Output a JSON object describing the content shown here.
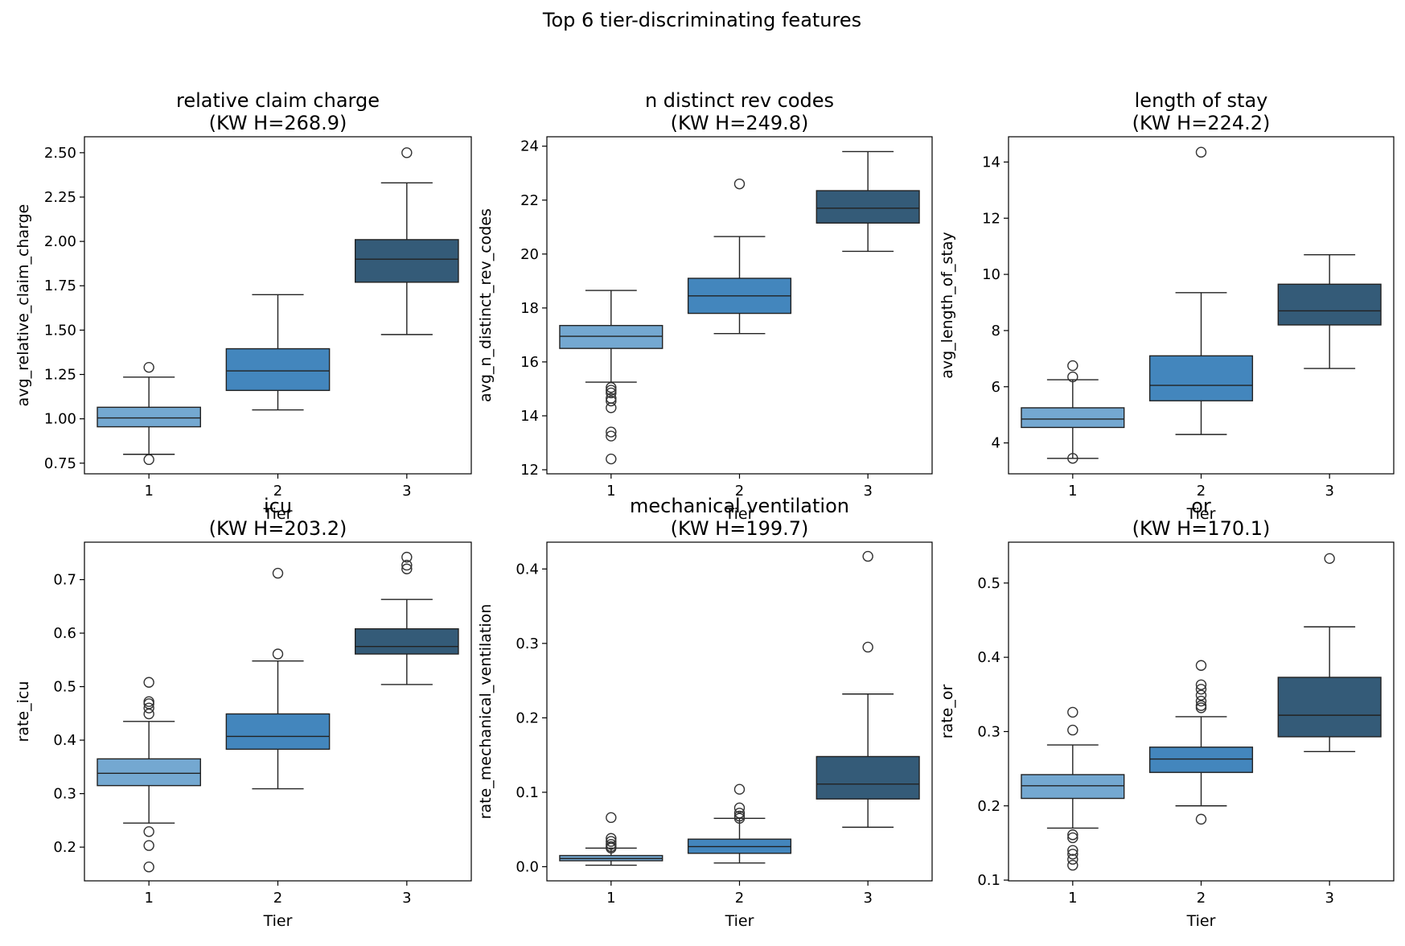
{
  "figure": {
    "title": "Top 6 tier-discriminating features"
  },
  "palette": {
    "tier1": "#74a8d1",
    "tier2": "#4386bd",
    "tier3": "#345b78",
    "edge": "#222222"
  },
  "chart_data": [
    {
      "type": "box",
      "title_line1": "relative claim charge",
      "title_line2": "(KW H=268.9)",
      "xlabel": "Tier",
      "ylabel": "avg_relative_claim_charge",
      "categories": [
        "1",
        "2",
        "3"
      ],
      "ylim": [
        0.69,
        2.59
      ],
      "yticks": [
        0.75,
        1.0,
        1.25,
        1.5,
        1.75,
        2.0,
        2.25,
        2.5
      ],
      "ytick_labels": [
        "0.75",
        "1.00",
        "1.25",
        "1.50",
        "1.75",
        "2.00",
        "2.25",
        "2.50"
      ],
      "boxes": [
        {
          "tier": "1",
          "whislo": 0.8,
          "q1": 0.955,
          "med": 1.005,
          "q3": 1.065,
          "whishi": 1.235,
          "fliers": [
            1.29,
            0.77
          ]
        },
        {
          "tier": "2",
          "whislo": 1.05,
          "q1": 1.16,
          "med": 1.27,
          "q3": 1.395,
          "whishi": 1.7,
          "fliers": []
        },
        {
          "tier": "3",
          "whislo": 1.475,
          "q1": 1.77,
          "med": 1.9,
          "q3": 2.01,
          "whishi": 2.33,
          "fliers": [
            2.5
          ]
        }
      ]
    },
    {
      "type": "box",
      "title_line1": "n distinct rev codes",
      "title_line2": "(KW H=249.8)",
      "xlabel": "Tier",
      "ylabel": "avg_n_distinct_rev_codes",
      "categories": [
        "1",
        "2",
        "3"
      ],
      "ylim": [
        11.85,
        24.35
      ],
      "yticks": [
        12,
        14,
        16,
        18,
        20,
        22,
        24
      ],
      "ytick_labels": [
        "12",
        "14",
        "16",
        "18",
        "20",
        "22",
        "24"
      ],
      "boxes": [
        {
          "tier": "1",
          "whislo": 15.25,
          "q1": 16.5,
          "med": 16.95,
          "q3": 17.35,
          "whishi": 18.65,
          "fliers": [
            15.05,
            14.95,
            14.85,
            14.65,
            14.55,
            14.3,
            13.4,
            13.25,
            12.4
          ]
        },
        {
          "tier": "2",
          "whislo": 17.05,
          "q1": 17.8,
          "med": 18.45,
          "q3": 19.1,
          "whishi": 20.65,
          "fliers": [
            22.6
          ]
        },
        {
          "tier": "3",
          "whislo": 20.1,
          "q1": 21.15,
          "med": 21.7,
          "q3": 22.35,
          "whishi": 23.8,
          "fliers": []
        }
      ]
    },
    {
      "type": "box",
      "title_line1": "length of stay",
      "title_line2": "(KW H=224.2)",
      "xlabel": "Tier",
      "ylabel": "avg_length_of_stay",
      "categories": [
        "1",
        "2",
        "3"
      ],
      "ylim": [
        2.9,
        14.9
      ],
      "yticks": [
        4,
        6,
        8,
        10,
        12,
        14
      ],
      "ytick_labels": [
        "4",
        "6",
        "8",
        "10",
        "12",
        "14"
      ],
      "boxes": [
        {
          "tier": "1",
          "whislo": 3.45,
          "q1": 4.55,
          "med": 4.85,
          "q3": 5.25,
          "whishi": 6.25,
          "fliers": [
            6.75,
            6.35,
            3.45
          ]
        },
        {
          "tier": "2",
          "whislo": 4.3,
          "q1": 5.5,
          "med": 6.05,
          "q3": 7.1,
          "whishi": 9.35,
          "fliers": [
            14.35
          ]
        },
        {
          "tier": "3",
          "whislo": 6.65,
          "q1": 8.2,
          "med": 8.7,
          "q3": 9.65,
          "whishi": 10.7,
          "fliers": []
        }
      ]
    },
    {
      "type": "box",
      "title_line1": "icu",
      "title_line2": "(KW H=203.2)",
      "xlabel": "Tier",
      "ylabel": "rate_icu",
      "categories": [
        "1",
        "2",
        "3"
      ],
      "ylim": [
        0.137,
        0.77
      ],
      "yticks": [
        0.2,
        0.3,
        0.4,
        0.5,
        0.6,
        0.7
      ],
      "ytick_labels": [
        "0.2",
        "0.3",
        "0.4",
        "0.5",
        "0.6",
        "0.7"
      ],
      "boxes": [
        {
          "tier": "1",
          "whislo": 0.245,
          "q1": 0.315,
          "med": 0.338,
          "q3": 0.365,
          "whishi": 0.435,
          "fliers": [
            0.508,
            0.472,
            0.468,
            0.46,
            0.449,
            0.229,
            0.203,
            0.163
          ]
        },
        {
          "tier": "2",
          "whislo": 0.309,
          "q1": 0.383,
          "med": 0.407,
          "q3": 0.449,
          "whishi": 0.548,
          "fliers": [
            0.712,
            0.561
          ]
        },
        {
          "tier": "3",
          "whislo": 0.504,
          "q1": 0.561,
          "med": 0.575,
          "q3": 0.608,
          "whishi": 0.663,
          "fliers": [
            0.742,
            0.727,
            0.72
          ]
        }
      ]
    },
    {
      "type": "box",
      "title_line1": "mechanical ventilation",
      "title_line2": "(KW H=199.7)",
      "xlabel": "Tier",
      "ylabel": "rate_mechanical_ventilation",
      "categories": [
        "1",
        "2",
        "3"
      ],
      "ylim": [
        -0.019,
        0.436
      ],
      "yticks": [
        0.0,
        0.1,
        0.2,
        0.3,
        0.4
      ],
      "ytick_labels": [
        "0.0",
        "0.1",
        "0.2",
        "0.3",
        "0.4"
      ],
      "boxes": [
        {
          "tier": "1",
          "whislo": 0.002,
          "q1": 0.008,
          "med": 0.011,
          "q3": 0.015,
          "whishi": 0.025,
          "fliers": [
            0.066,
            0.038,
            0.034,
            0.03,
            0.027,
            0.025
          ]
        },
        {
          "tier": "2",
          "whislo": 0.005,
          "q1": 0.018,
          "med": 0.027,
          "q3": 0.037,
          "whishi": 0.065,
          "fliers": [
            0.104,
            0.079,
            0.072,
            0.068,
            0.065
          ]
        },
        {
          "tier": "3",
          "whislo": 0.053,
          "q1": 0.091,
          "med": 0.111,
          "q3": 0.148,
          "whishi": 0.232,
          "fliers": [
            0.417,
            0.295
          ]
        }
      ]
    },
    {
      "type": "box",
      "title_line1": "or",
      "title_line2": "(KW H=170.1)",
      "xlabel": "Tier",
      "ylabel": "rate_or",
      "categories": [
        "1",
        "2",
        "3"
      ],
      "ylim": [
        0.099,
        0.555
      ],
      "yticks": [
        0.1,
        0.2,
        0.3,
        0.4,
        0.5
      ],
      "ytick_labels": [
        "0.1",
        "0.2",
        "0.3",
        "0.4",
        "0.5"
      ],
      "boxes": [
        {
          "tier": "1",
          "whislo": 0.17,
          "q1": 0.21,
          "med": 0.227,
          "q3": 0.242,
          "whishi": 0.282,
          "fliers": [
            0.326,
            0.302,
            0.161,
            0.157,
            0.14,
            0.135,
            0.128,
            0.12
          ]
        },
        {
          "tier": "2",
          "whislo": 0.2,
          "q1": 0.245,
          "med": 0.263,
          "q3": 0.279,
          "whishi": 0.32,
          "fliers": [
            0.389,
            0.363,
            0.357,
            0.349,
            0.341,
            0.335,
            0.332,
            0.182
          ]
        },
        {
          "tier": "3",
          "whislo": 0.273,
          "q1": 0.293,
          "med": 0.322,
          "q3": 0.373,
          "whishi": 0.441,
          "fliers": [
            0.533
          ]
        }
      ]
    }
  ]
}
